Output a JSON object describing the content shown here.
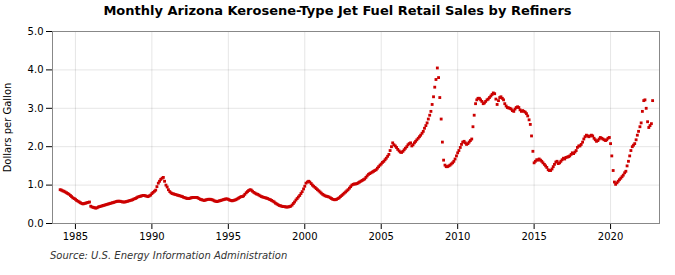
{
  "chart_data": {
    "type": "scatter",
    "title": "Monthly Arizona Kerosene-Type Jet Fuel Retail Sales by Refiners",
    "ylabel": "Dollars per Gallon",
    "source": "Source: U.S. Energy Information Administration",
    "color": "#cc0000",
    "marker": "square",
    "grid": true,
    "xlim": [
      1983.5,
      2023.2
    ],
    "ylim": [
      0.0,
      5.0
    ],
    "xticks": [
      1985,
      1990,
      1995,
      2000,
      2005,
      2010,
      2015,
      2020
    ],
    "yticks": [
      {
        "value": 0.0,
        "label": "0.0"
      },
      {
        "value": 1.0,
        "label": "1.0"
      },
      {
        "value": 2.0,
        "label": "2.0"
      },
      {
        "value": 3.0,
        "label": "3.0"
      },
      {
        "value": 4.0,
        "label": "4.0"
      },
      {
        "value": 5.0,
        "label": "5.0"
      }
    ],
    "x": [
      1984.0,
      1984.08,
      1984.17,
      1984.25,
      1984.33,
      1984.42,
      1984.5,
      1984.58,
      1984.67,
      1984.75,
      1984.83,
      1984.92,
      1985.0,
      1985.08,
      1985.17,
      1985.25,
      1985.33,
      1985.42,
      1985.5,
      1985.58,
      1985.67,
      1985.75,
      1985.83,
      1985.92,
      1986.0,
      1986.08,
      1986.17,
      1986.25,
      1986.33,
      1986.42,
      1986.5,
      1986.58,
      1986.67,
      1986.75,
      1986.83,
      1986.92,
      1987.0,
      1987.08,
      1987.17,
      1987.25,
      1987.33,
      1987.42,
      1987.5,
      1987.58,
      1987.67,
      1987.75,
      1987.83,
      1987.92,
      1988.0,
      1988.08,
      1988.17,
      1988.25,
      1988.33,
      1988.42,
      1988.5,
      1988.58,
      1988.67,
      1988.75,
      1988.83,
      1988.92,
      1989.0,
      1989.08,
      1989.17,
      1989.25,
      1989.33,
      1989.42,
      1989.5,
      1989.58,
      1989.67,
      1989.75,
      1989.83,
      1989.92,
      1990.0,
      1990.08,
      1990.17,
      1990.25,
      1990.33,
      1990.42,
      1990.5,
      1990.58,
      1990.67,
      1990.75,
      1990.83,
      1990.92,
      1991.0,
      1991.08,
      1991.17,
      1991.25,
      1991.33,
      1991.42,
      1991.5,
      1991.58,
      1991.67,
      1991.75,
      1991.83,
      1991.92,
      1992.0,
      1992.08,
      1992.17,
      1992.25,
      1992.33,
      1992.42,
      1992.5,
      1992.58,
      1992.67,
      1992.75,
      1992.83,
      1992.92,
      1993.0,
      1993.08,
      1993.17,
      1993.25,
      1993.33,
      1993.42,
      1993.5,
      1993.58,
      1993.67,
      1993.75,
      1993.83,
      1993.92,
      1994.0,
      1994.08,
      1994.17,
      1994.25,
      1994.33,
      1994.42,
      1994.5,
      1994.58,
      1994.67,
      1994.75,
      1994.83,
      1994.92,
      1995.0,
      1995.08,
      1995.17,
      1995.25,
      1995.33,
      1995.42,
      1995.5,
      1995.58,
      1995.67,
      1995.75,
      1995.83,
      1995.92,
      1996.0,
      1996.08,
      1996.17,
      1996.25,
      1996.33,
      1996.42,
      1996.5,
      1996.58,
      1996.67,
      1996.75,
      1996.83,
      1996.92,
      1997.0,
      1997.08,
      1997.17,
      1997.25,
      1997.33,
      1997.42,
      1997.5,
      1997.58,
      1997.67,
      1997.75,
      1997.83,
      1997.92,
      1998.0,
      1998.08,
      1998.17,
      1998.25,
      1998.33,
      1998.42,
      1998.5,
      1998.58,
      1998.67,
      1998.75,
      1998.83,
      1998.92,
      1999.0,
      1999.08,
      1999.17,
      1999.25,
      1999.33,
      1999.42,
      1999.5,
      1999.58,
      1999.67,
      1999.75,
      1999.83,
      1999.92,
      2000.0,
      2000.08,
      2000.17,
      2000.25,
      2000.33,
      2000.42,
      2000.5,
      2000.58,
      2000.67,
      2000.75,
      2000.83,
      2000.92,
      2001.0,
      2001.08,
      2001.17,
      2001.25,
      2001.33,
      2001.42,
      2001.5,
      2001.58,
      2001.67,
      2001.75,
      2001.83,
      2001.92,
      2002.0,
      2002.08,
      2002.17,
      2002.25,
      2002.33,
      2002.42,
      2002.5,
      2002.58,
      2002.67,
      2002.75,
      2002.83,
      2002.92,
      2003.0,
      2003.08,
      2003.17,
      2003.25,
      2003.33,
      2003.42,
      2003.5,
      2003.58,
      2003.67,
      2003.75,
      2003.83,
      2003.92,
      2004.0,
      2004.08,
      2004.17,
      2004.25,
      2004.33,
      2004.42,
      2004.5,
      2004.58,
      2004.67,
      2004.75,
      2004.83,
      2004.92,
      2005.0,
      2005.08,
      2005.17,
      2005.25,
      2005.33,
      2005.42,
      2005.5,
      2005.58,
      2005.67,
      2005.75,
      2005.83,
      2005.92,
      2006.0,
      2006.08,
      2006.17,
      2006.25,
      2006.33,
      2006.42,
      2006.5,
      2006.58,
      2006.67,
      2006.75,
      2006.83,
      2006.92,
      2007.0,
      2007.08,
      2007.17,
      2007.25,
      2007.33,
      2007.42,
      2007.5,
      2007.58,
      2007.67,
      2007.75,
      2007.83,
      2007.92,
      2008.0,
      2008.08,
      2008.17,
      2008.25,
      2008.33,
      2008.42,
      2008.5,
      2008.58,
      2008.67,
      2008.75,
      2008.83,
      2008.92,
      2009.0,
      2009.08,
      2009.17,
      2009.25,
      2009.33,
      2009.42,
      2009.5,
      2009.58,
      2009.67,
      2009.75,
      2009.83,
      2009.92,
      2010.0,
      2010.08,
      2010.17,
      2010.25,
      2010.33,
      2010.42,
      2010.5,
      2010.58,
      2010.67,
      2010.75,
      2010.83,
      2010.92,
      2011.0,
      2011.08,
      2011.17,
      2011.25,
      2011.33,
      2011.42,
      2011.5,
      2011.58,
      2011.67,
      2011.75,
      2011.83,
      2011.92,
      2012.0,
      2012.08,
      2012.17,
      2012.25,
      2012.33,
      2012.42,
      2012.5,
      2012.58,
      2012.67,
      2012.75,
      2012.83,
      2012.92,
      2013.0,
      2013.08,
      2013.17,
      2013.25,
      2013.33,
      2013.42,
      2013.5,
      2013.58,
      2013.67,
      2013.75,
      2013.83,
      2013.92,
      2014.0,
      2014.08,
      2014.17,
      2014.25,
      2014.33,
      2014.42,
      2014.5,
      2014.58,
      2014.67,
      2014.75,
      2014.83,
      2014.92,
      2015.0,
      2015.08,
      2015.17,
      2015.25,
      2015.33,
      2015.42,
      2015.5,
      2015.58,
      2015.67,
      2015.75,
      2015.83,
      2015.92,
      2016.0,
      2016.08,
      2016.17,
      2016.25,
      2016.33,
      2016.42,
      2016.5,
      2016.58,
      2016.67,
      2016.75,
      2016.83,
      2016.92,
      2017.0,
      2017.08,
      2017.17,
      2017.25,
      2017.33,
      2017.42,
      2017.5,
      2017.58,
      2017.67,
      2017.75,
      2017.83,
      2017.92,
      2018.0,
      2018.08,
      2018.17,
      2018.25,
      2018.33,
      2018.42,
      2018.5,
      2018.58,
      2018.67,
      2018.75,
      2018.83,
      2018.92,
      2019.0,
      2019.08,
      2019.17,
      2019.25,
      2019.33,
      2019.42,
      2019.5,
      2019.58,
      2019.67,
      2019.75,
      2019.83,
      2019.92,
      2020.0,
      2020.08,
      2020.17,
      2020.25,
      2020.33,
      2020.42,
      2020.5,
      2020.58,
      2020.67,
      2020.75,
      2020.83,
      2020.92,
      2021.0,
      2021.08,
      2021.17,
      2021.25,
      2021.33,
      2021.42,
      2021.5,
      2021.58,
      2021.67,
      2021.75,
      2021.83,
      2021.92,
      2022.0,
      2022.08,
      2022.17,
      2022.25,
      2022.33,
      2022.42,
      2022.5,
      2022.58,
      2022.67,
      2022.75
    ],
    "values": [
      0.88,
      0.87,
      0.85,
      0.84,
      0.82,
      0.8,
      0.78,
      0.76,
      0.73,
      0.7,
      0.67,
      0.65,
      0.63,
      0.6,
      0.58,
      0.56,
      0.54,
      0.52,
      0.51,
      0.52,
      0.53,
      0.54,
      0.55,
      0.56,
      0.45,
      0.43,
      0.42,
      0.41,
      0.4,
      0.41,
      0.43,
      0.44,
      0.45,
      0.46,
      0.47,
      0.48,
      0.49,
      0.5,
      0.51,
      0.52,
      0.53,
      0.54,
      0.55,
      0.56,
      0.57,
      0.58,
      0.58,
      0.58,
      0.57,
      0.56,
      0.56,
      0.56,
      0.57,
      0.58,
      0.59,
      0.6,
      0.61,
      0.62,
      0.64,
      0.65,
      0.67,
      0.69,
      0.7,
      0.71,
      0.72,
      0.73,
      0.73,
      0.72,
      0.71,
      0.7,
      0.72,
      0.74,
      0.78,
      0.81,
      0.84,
      0.87,
      0.96,
      1.05,
      1.1,
      1.15,
      1.18,
      1.2,
      1.1,
      1.0,
      0.95,
      0.88,
      0.83,
      0.8,
      0.78,
      0.77,
      0.76,
      0.75,
      0.74,
      0.73,
      0.72,
      0.71,
      0.7,
      0.68,
      0.67,
      0.66,
      0.65,
      0.65,
      0.66,
      0.67,
      0.68,
      0.68,
      0.68,
      0.68,
      0.67,
      0.65,
      0.63,
      0.62,
      0.61,
      0.6,
      0.61,
      0.62,
      0.63,
      0.63,
      0.63,
      0.62,
      0.61,
      0.59,
      0.58,
      0.57,
      0.58,
      0.59,
      0.6,
      0.61,
      0.62,
      0.63,
      0.64,
      0.64,
      0.63,
      0.61,
      0.6,
      0.59,
      0.6,
      0.61,
      0.62,
      0.64,
      0.66,
      0.68,
      0.7,
      0.7,
      0.72,
      0.76,
      0.8,
      0.83,
      0.86,
      0.88,
      0.87,
      0.84,
      0.81,
      0.79,
      0.77,
      0.76,
      0.74,
      0.72,
      0.7,
      0.69,
      0.68,
      0.67,
      0.66,
      0.65,
      0.63,
      0.62,
      0.6,
      0.58,
      0.56,
      0.53,
      0.51,
      0.49,
      0.47,
      0.46,
      0.45,
      0.44,
      0.44,
      0.43,
      0.43,
      0.43,
      0.44,
      0.45,
      0.48,
      0.52,
      0.56,
      0.61,
      0.65,
      0.69,
      0.73,
      0.78,
      0.83,
      0.9,
      0.97,
      1.05,
      1.08,
      1.1,
      1.08,
      1.04,
      1.0,
      0.97,
      0.94,
      0.91,
      0.88,
      0.85,
      0.82,
      0.79,
      0.76,
      0.74,
      0.72,
      0.71,
      0.7,
      0.69,
      0.67,
      0.65,
      0.63,
      0.62,
      0.62,
      0.63,
      0.65,
      0.67,
      0.7,
      0.73,
      0.76,
      0.79,
      0.82,
      0.85,
      0.88,
      0.92,
      0.96,
      1.0,
      1.02,
      1.03,
      1.03,
      1.04,
      1.06,
      1.08,
      1.1,
      1.12,
      1.14,
      1.16,
      1.2,
      1.24,
      1.28,
      1.3,
      1.32,
      1.34,
      1.36,
      1.38,
      1.4,
      1.44,
      1.48,
      1.52,
      1.55,
      1.59,
      1.62,
      1.66,
      1.7,
      1.75,
      1.8,
      1.9,
      2.0,
      2.1,
      2.05,
      2.02,
      1.98,
      1.93,
      1.89,
      1.86,
      1.85,
      1.88,
      1.92,
      1.96,
      2.0,
      2.05,
      2.08,
      2.1,
      2.02,
      2.05,
      2.1,
      2.14,
      2.18,
      2.22,
      2.26,
      2.3,
      2.35,
      2.4,
      2.48,
      2.55,
      2.62,
      2.72,
      2.82,
      2.92,
      3.1,
      3.3,
      3.55,
      3.75,
      4.05,
      3.8,
      3.28,
      2.72,
      2.12,
      1.65,
      1.52,
      1.48,
      1.48,
      1.5,
      1.52,
      1.55,
      1.58,
      1.62,
      1.68,
      1.76,
      1.84,
      1.9,
      1.98,
      2.06,
      2.12,
      2.14,
      2.1,
      2.06,
      2.08,
      2.12,
      2.16,
      2.2,
      2.52,
      2.82,
      3.12,
      3.22,
      3.26,
      3.26,
      3.22,
      3.18,
      3.12,
      3.14,
      3.18,
      3.22,
      3.24,
      3.28,
      3.32,
      3.36,
      3.4,
      3.38,
      3.24,
      3.1,
      3.2,
      3.28,
      3.3,
      3.26,
      3.22,
      3.12,
      3.06,
      3.02,
      3.01,
      3.0,
      2.98,
      2.94,
      2.92,
      2.98,
      3.02,
      3.04,
      3.02,
      2.96,
      2.92,
      2.94,
      2.92,
      2.9,
      2.86,
      2.8,
      2.7,
      2.58,
      2.28,
      1.88,
      1.58,
      1.62,
      1.66,
      1.65,
      1.68,
      1.65,
      1.62,
      1.58,
      1.54,
      1.5,
      1.46,
      1.4,
      1.38,
      1.38,
      1.42,
      1.48,
      1.54,
      1.6,
      1.62,
      1.56,
      1.58,
      1.62,
      1.66,
      1.7,
      1.68,
      1.72,
      1.73,
      1.74,
      1.76,
      1.8,
      1.84,
      1.82,
      1.86,
      1.9,
      1.98,
      2.02,
      2.02,
      2.06,
      2.12,
      2.2,
      2.26,
      2.3,
      2.28,
      2.26,
      2.28,
      2.3,
      2.28,
      2.22,
      2.18,
      2.14,
      2.16,
      2.2,
      2.24,
      2.22,
      2.2,
      2.18,
      2.16,
      2.18,
      2.22,
      2.24,
      2.08,
      1.76,
      1.38,
      1.08,
      1.02,
      1.06,
      1.1,
      1.14,
      1.18,
      1.22,
      1.26,
      1.32,
      1.36,
      1.5,
      1.62,
      1.76,
      1.9,
      2.0,
      2.04,
      2.08,
      2.18,
      2.3,
      2.4,
      2.52,
      2.62,
      2.92,
      3.2,
      3.22,
      3.0,
      2.65,
      2.5,
      2.55,
      2.6,
      3.2
    ]
  }
}
